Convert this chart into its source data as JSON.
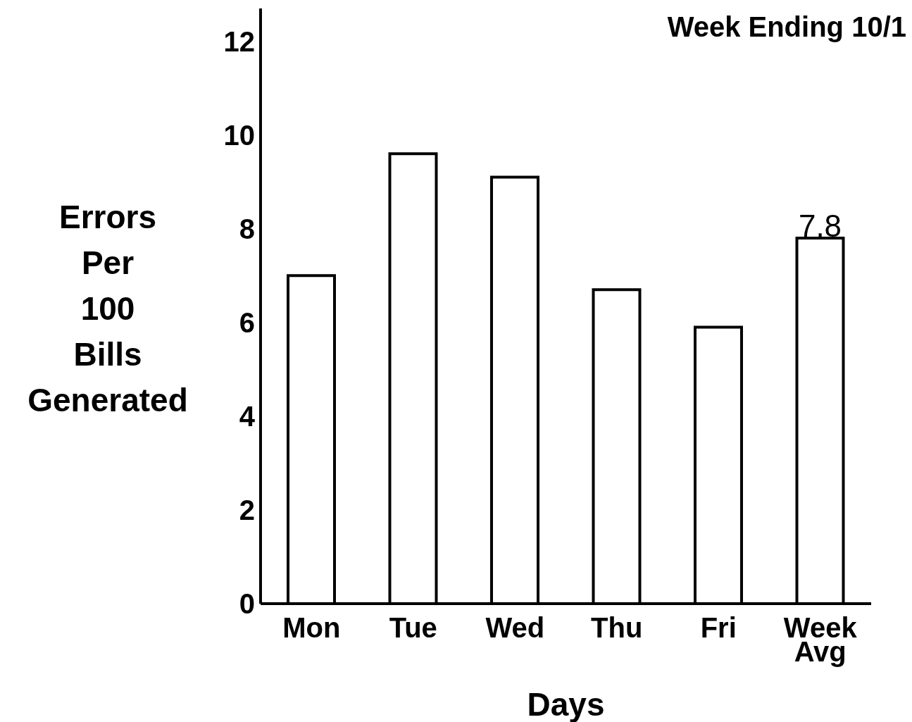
{
  "chart_data": {
    "type": "bar",
    "title": "Week Ending 10/1",
    "xlabel": "Days",
    "ylabel": "Errors Per 100 Bills Generated",
    "categories": [
      "Mon",
      "Tue",
      "Wed",
      "Thu",
      "Fri",
      "Week Avg"
    ],
    "values": [
      7.0,
      9.6,
      9.1,
      6.7,
      5.9,
      7.8
    ],
    "value_labels": [
      null,
      null,
      null,
      null,
      null,
      "7.8"
    ],
    "color": "#ffffff",
    "ylim": [
      0,
      12.7
    ],
    "yticks": [
      0,
      2,
      4,
      6,
      8,
      10,
      12
    ],
    "grid": false,
    "legend": false
  }
}
